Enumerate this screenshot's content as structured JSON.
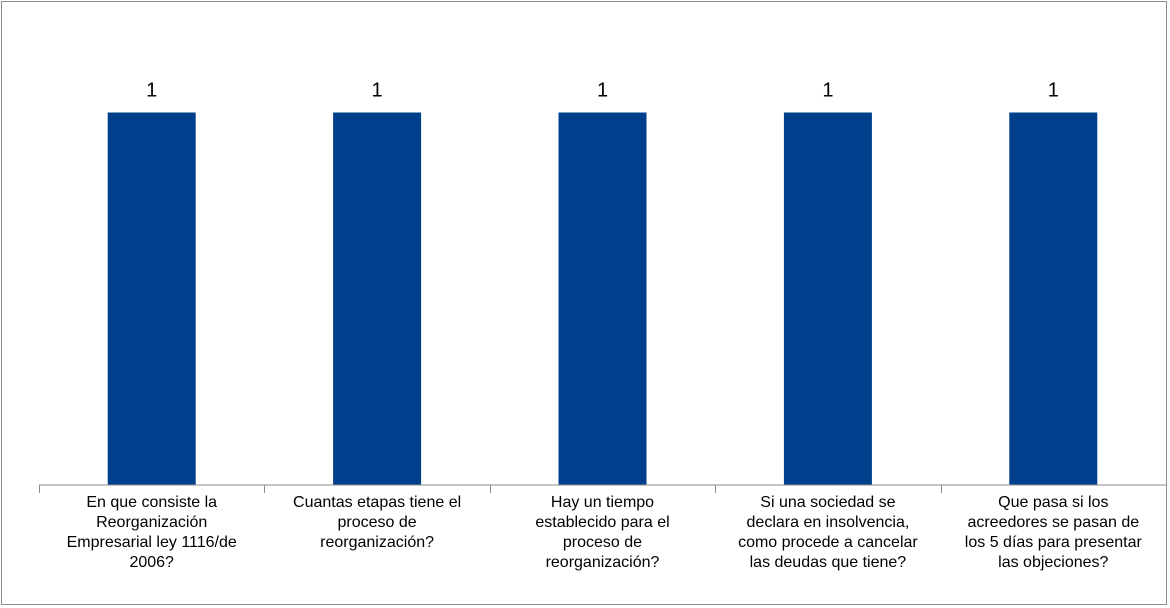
{
  "chart_data": {
    "type": "bar",
    "categories": [
      [
        "En que consiste la",
        "Reorganización",
        "Empresarial ley 1116/de",
        "2006?"
      ],
      [
        "Cuantas etapas tiene el",
        "proceso de",
        "reorganización?"
      ],
      [
        "Hay un tiempo",
        "establecido para el",
        "proceso de",
        "reorganización?"
      ],
      [
        "Si una sociedad se",
        "declara en insolvencia,",
        "como procede a cancelar",
        "las deudas que tiene?"
      ],
      [
        "Que pasa si los",
        "acreedores se pasan de",
        "los 5 días para presentar",
        "las objeciones?"
      ]
    ],
    "values": [
      1,
      1,
      1,
      1,
      1
    ],
    "data_labels": [
      "1",
      "1",
      "1",
      "1",
      "1"
    ],
    "title": "",
    "xlabel": "",
    "ylabel": "",
    "ylim": [
      0,
      1.2
    ],
    "grid": false,
    "legend": "none",
    "bar_color": "#003f8c",
    "axis_color": "#8c8c8c"
  }
}
